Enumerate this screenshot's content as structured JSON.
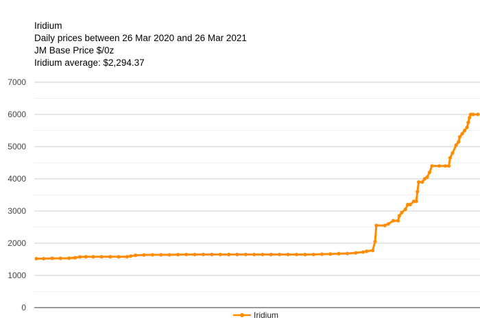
{
  "header": {
    "title": "Iridium",
    "subtitle": "Daily prices between 26 Mar 2020 and 26 Mar 2021",
    "unit_line": "JM Base Price $/0z",
    "average_line": "Iridium average: $2,294.37"
  },
  "chart_data": {
    "type": "line",
    "title": "Iridium",
    "xlabel": "",
    "ylabel": "",
    "ylim": [
      0,
      7000
    ],
    "yticks": [
      0,
      1000,
      2000,
      3000,
      4000,
      5000,
      6000,
      7000
    ],
    "x_range": [
      "2020-03-26",
      "2021-03-26"
    ],
    "grid": true,
    "legend": "bottom",
    "color": "#ff8c00",
    "series": [
      {
        "name": "Iridium",
        "points": [
          [
            "2020-03-26",
            1520
          ],
          [
            "2020-04-01",
            1520
          ],
          [
            "2020-04-08",
            1530
          ],
          [
            "2020-04-15",
            1530
          ],
          [
            "2020-04-22",
            1535
          ],
          [
            "2020-04-27",
            1550
          ],
          [
            "2020-05-01",
            1575
          ],
          [
            "2020-05-06",
            1580
          ],
          [
            "2020-05-12",
            1580
          ],
          [
            "2020-05-19",
            1580
          ],
          [
            "2020-05-26",
            1580
          ],
          [
            "2020-06-02",
            1580
          ],
          [
            "2020-06-09",
            1580
          ],
          [
            "2020-06-12",
            1600
          ],
          [
            "2020-06-16",
            1625
          ],
          [
            "2020-06-23",
            1635
          ],
          [
            "2020-06-30",
            1640
          ],
          [
            "2020-07-07",
            1640
          ],
          [
            "2020-07-14",
            1640
          ],
          [
            "2020-07-21",
            1645
          ],
          [
            "2020-07-28",
            1650
          ],
          [
            "2020-08-04",
            1650
          ],
          [
            "2020-08-11",
            1650
          ],
          [
            "2020-08-18",
            1650
          ],
          [
            "2020-08-25",
            1650
          ],
          [
            "2020-09-01",
            1650
          ],
          [
            "2020-09-08",
            1650
          ],
          [
            "2020-09-15",
            1650
          ],
          [
            "2020-09-22",
            1650
          ],
          [
            "2020-09-29",
            1650
          ],
          [
            "2020-10-06",
            1650
          ],
          [
            "2020-10-13",
            1650
          ],
          [
            "2020-10-20",
            1650
          ],
          [
            "2020-10-27",
            1650
          ],
          [
            "2020-11-03",
            1650
          ],
          [
            "2020-11-10",
            1650
          ],
          [
            "2020-11-17",
            1660
          ],
          [
            "2020-11-24",
            1665
          ],
          [
            "2020-12-01",
            1675
          ],
          [
            "2020-12-08",
            1680
          ],
          [
            "2020-12-15",
            1700
          ],
          [
            "2020-12-21",
            1725
          ],
          [
            "2020-12-24",
            1750
          ],
          [
            "2020-12-29",
            1775
          ],
          [
            "2020-12-31",
            2050
          ],
          [
            "2021-01-01",
            2550
          ],
          [
            "2021-01-08",
            2550
          ],
          [
            "2021-01-11",
            2600
          ],
          [
            "2021-01-15",
            2700
          ],
          [
            "2021-01-19",
            2700
          ],
          [
            "2021-01-20",
            2850
          ],
          [
            "2021-01-22",
            2950
          ],
          [
            "2021-01-25",
            3050
          ],
          [
            "2021-01-27",
            3200
          ],
          [
            "2021-01-29",
            3200
          ],
          [
            "2021-02-01",
            3300
          ],
          [
            "2021-02-03",
            3300
          ],
          [
            "2021-02-04",
            3600
          ],
          [
            "2021-02-05",
            3900
          ],
          [
            "2021-02-08",
            3900
          ],
          [
            "2021-02-10",
            4000
          ],
          [
            "2021-02-12",
            4050
          ],
          [
            "2021-02-14",
            4200
          ],
          [
            "2021-02-16",
            4400
          ],
          [
            "2021-02-22",
            4400
          ],
          [
            "2021-02-27",
            4400
          ],
          [
            "2021-03-02",
            4400
          ],
          [
            "2021-03-03",
            4650
          ],
          [
            "2021-03-05",
            4800
          ],
          [
            "2021-03-08",
            5050
          ],
          [
            "2021-03-10",
            5150
          ],
          [
            "2021-03-11",
            5300
          ],
          [
            "2021-03-13",
            5400
          ],
          [
            "2021-03-15",
            5500
          ],
          [
            "2021-03-17",
            5600
          ],
          [
            "2021-03-18",
            5750
          ],
          [
            "2021-03-19",
            5900
          ],
          [
            "2021-03-20",
            6000
          ],
          [
            "2021-03-22",
            6000
          ],
          [
            "2021-03-26",
            6000
          ]
        ]
      }
    ]
  }
}
